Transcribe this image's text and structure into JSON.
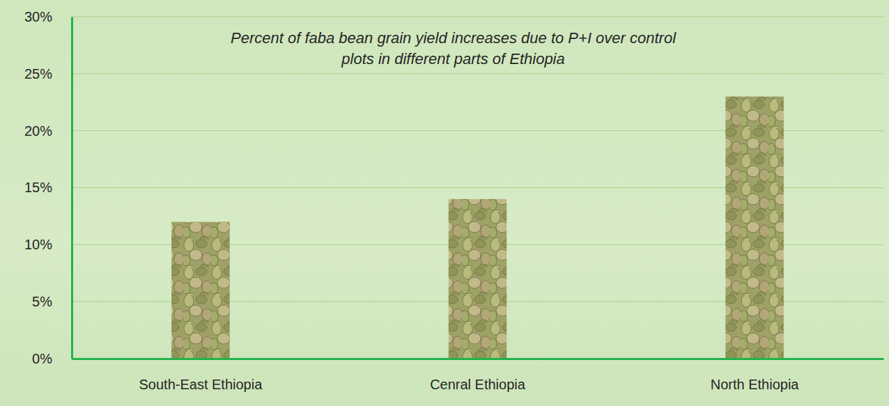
{
  "chart_data": {
    "type": "bar",
    "title": "Percent of faba bean grain yield increases due to P+I over control plots in different parts of Ethiopia",
    "categories": [
      "South-East Ethiopia",
      "Cenral Ethiopia",
      "North Ethiopia"
    ],
    "values": [
      12,
      14,
      23
    ],
    "color": "#9fa267",
    "ylim": [
      0,
      30
    ],
    "yticks": [
      {
        "value": 0,
        "label": "0%"
      },
      {
        "value": 5,
        "label": "5%"
      },
      {
        "value": 10,
        "label": "10%"
      },
      {
        "value": 15,
        "label": "15%"
      },
      {
        "value": 20,
        "label": "20%"
      },
      {
        "value": 25,
        "label": "25%"
      },
      {
        "value": 30,
        "label": "30%"
      }
    ],
    "grid": true
  }
}
